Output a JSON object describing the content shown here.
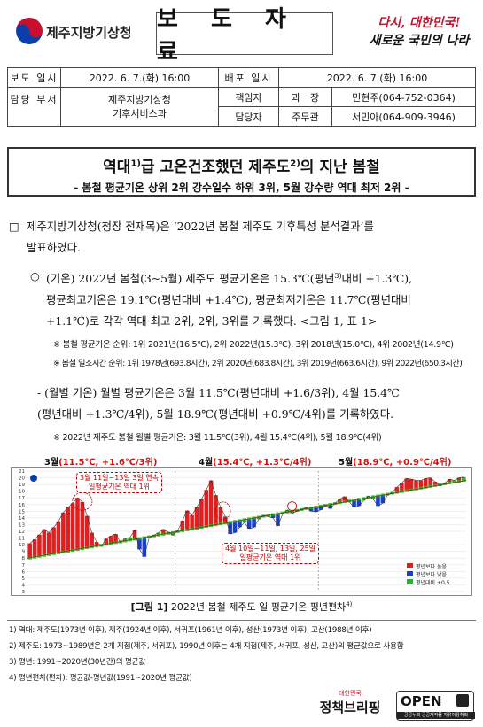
{
  "header": {
    "org_name": "제주지방기상청",
    "doc_type": "보 도 자 료",
    "slogan_line1": "다시, 대한민국!",
    "slogan_line2": "새로운 국민의 나라"
  },
  "info": {
    "report_date_label": "보도 일시",
    "report_date": "2022. 6. 7.(화) 16:00",
    "dist_date_label": "배포 일시",
    "dist_date": "2022. 6. 7.(화) 16:00",
    "dept_label": "담당 부서",
    "dept_name": "제주지방기상청",
    "dept_sub": "기후서비스과",
    "resp_label": "책임자",
    "resp_title": "과　장",
    "resp_name": "민현주(064-752-0364)",
    "staff_label": "담당자",
    "staff_title": "주무관",
    "staff_name": "서민아(064-909-3946)"
  },
  "title": {
    "main_a": "역대",
    "main_sup1": "1)",
    "main_b": "급 고온건조했던 제주도",
    "main_sup2": "2)",
    "main_c": "의 지난 봄철",
    "sub": "- 봄철 평균기온 상위 2위 강수일수 하위 3위, 5월 강수량 역대 최저 2위 -"
  },
  "body": {
    "p1_bullet": "□",
    "p1_line1": "제주지방기상청(청장 전재목)은 ‘2022년 봄철 제주도 기후특성 분석결과’를",
    "p1_line2": "발표하였다.",
    "p2_bullet": "○",
    "p2_line1a": "(기온) 2022년 봄철(3~5월) 제주도 평균기온은 15.3℃(평년",
    "p2_sup": "3)",
    "p2_line1b": "대비 +1.3℃),",
    "p2_line2": "평균최고기온은 19.1℃(평년대비 +1.4℃), 평균최저기온은 11.7℃(평년대비",
    "p2_line3": "+1.1℃)로 각각 역대 최고 2위, 2위, 3위를 기록했다. <그림 1, 표 1>",
    "note1": "※ 봄철 평균기온 순위: 1위 2021년(16.5℃), 2위 2022년(15.3℃), 3위 2018년(15.0℃), 4위 2002년(14.9℃)",
    "note2": "※ 봄철 일조시간 순위: 1위 1978년(693.8시간), 2위 2020년(683.8시간), 3위 2019년(663.6시간), 9위 2022년(650.3시간)",
    "p3_line1": "- (월별 기온) 월별 평균기온은 3월 11.5℃(평년대비 +1.6/3위), 4월 15.4℃",
    "p3_line2": "(평년대비 +1.3℃/4위), 5월 18.9℃(평년대비 +0.9℃/4위)를 기록하였다.",
    "note3": "※ 2022년 제주도 봄철 월별 평균기온: 3월 11.5℃(3위), 4월 15.4℃(4위), 5월 18.9℃(4위)"
  },
  "chart_data": {
    "type": "bar",
    "title": "2022년 봄철 제주도 일 평균기온 평년편차",
    "months": [
      {
        "label": "3월",
        "detail": "(11.5℃, +1.6℃/3위)"
      },
      {
        "label": "4월",
        "detail": "(15.4℃, +1.3℃/4위)"
      },
      {
        "label": "5월",
        "detail": "(18.9℃, +0.9℃/4위)"
      }
    ],
    "ylim": [
      3,
      21
    ],
    "yticks": [
      3,
      4,
      5,
      6,
      7,
      8,
      9,
      10,
      11,
      12,
      13,
      14,
      15,
      16,
      17,
      18,
      19,
      20,
      21
    ],
    "normal_start": 8.0,
    "normal_end": 19.6,
    "daily_mean": [
      10.2,
      10.8,
      11.5,
      12.3,
      11.8,
      12.6,
      13.5,
      14.8,
      15.6,
      16.2,
      17.0,
      16.4,
      14.3,
      11.8,
      10.4,
      9.8,
      10.9,
      11.3,
      11.6,
      10.4,
      10.9,
      11.1,
      12.2,
      9.3,
      8.2,
      11.0,
      11.4,
      11.8,
      12.3,
      11.9,
      11.4,
      12.1,
      13.6,
      15.1,
      14.4,
      15.6,
      16.8,
      18.2,
      19.6,
      17.4,
      15.6,
      14.2,
      11.6,
      11.8,
      12.6,
      13.3,
      12.4,
      12.6,
      13.8,
      14.4,
      14.2,
      14.0,
      12.8,
      14.6,
      15.2,
      14.7,
      15.0,
      15.3,
      15.6,
      15.0,
      14.9,
      15.2,
      15.8,
      15.4,
      16.2,
      16.8,
      17.2,
      16.4,
      15.6,
      15.8,
      16.6,
      17.3,
      16.8,
      15.8,
      16.2,
      17.4,
      17.8,
      18.6,
      19.2,
      19.9,
      19.8,
      19.6,
      19.6,
      19.9,
      20.0,
      19.4,
      18.8,
      19.2,
      19.8,
      19.6,
      20.0,
      20.1
    ],
    "legend": [
      "평년보다 높음",
      "평년보다 낮음",
      "평년대비 ±0.5"
    ],
    "callout1": [
      "3월 11일~13일 3일 연속",
      "일평균기온 역대 1위"
    ],
    "callout2": [
      "4월 10일~11일, 13일, 25일",
      "일평균기온 역대 1위"
    ],
    "legend_position": "bottom-right"
  },
  "figure": {
    "caption_label": "[그림 1]",
    "caption_text": "2022년 봄철 제주도 일 평균기온 평년편차",
    "caption_sup": "4)"
  },
  "footnotes": [
    "1) 역대: 제주도(1973년 이후), 제주(1924년 이후), 서귀포(1961년 이후), 성산(1973년 이후), 고산(1988년 이후)",
    "2) 제주도: 1973~1989년은 2개 지점(제주, 서귀포), 1990년 이후는 4개 지점(제주, 서귀포, 성산, 고산)의 평균값으로 사용함",
    "3) 평년: 1991~2020년(30년간)의 평균값",
    "4) 평년편차(편차): 평균값-평년값(1991~2020년 평균값)"
  ],
  "logos": {
    "policy_small": "대한민국",
    "policy_big": "정책브리핑",
    "open_text": "OPEN",
    "open_sub": "공공누리 공공저작물 자유이용허락"
  },
  "colors": {
    "above_normal": "#e02020",
    "below_normal": "#1a3fd0",
    "near_normal": "#22b822",
    "line": "#7a3a00",
    "accent_red": "#c8102e"
  }
}
